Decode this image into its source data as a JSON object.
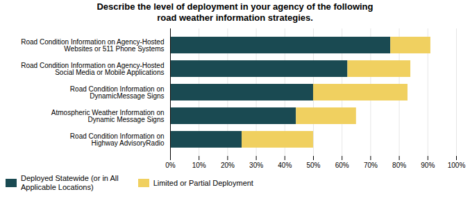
{
  "chart_data": {
    "type": "bar",
    "orientation": "horizontal",
    "stacked": true,
    "title": "Describe the level of deployment in your agency of the following\nroad weather information strategies.",
    "categories": [
      "Road Condition Information on Agency-Hosted\nWebsites or 511 Phone Systems",
      "Road Condition Information on Agency-Hosted\nSocial Media or Mobile Applications",
      "Road Condition Information on\nDynamicMessage Signs",
      "Atmospheric Weather Information on\nDynamic Message Signs",
      "Road Condition Information on\nHighway AdvisoryRadio"
    ],
    "series": [
      {
        "name": "Deployed Statewide (or in All\nApplicable Locations)",
        "color": "#1a4a52",
        "values": [
          77,
          62,
          50,
          44,
          25
        ]
      },
      {
        "name": "Limited or Partial Deployment",
        "color": "#f0d060",
        "values": [
          14,
          22,
          33,
          21,
          25
        ]
      }
    ],
    "xlim": [
      0,
      100
    ],
    "xticks": [
      {
        "value": 0,
        "label": "0%"
      },
      {
        "value": 10,
        "label": "10%"
      },
      {
        "value": 20,
        "label": "20%"
      },
      {
        "value": 30,
        "label": "30%"
      },
      {
        "value": 40,
        "label": "40%"
      },
      {
        "value": 50,
        "label": "50%"
      },
      {
        "value": 60,
        "label": "60%"
      },
      {
        "value": 70,
        "label": "70%"
      },
      {
        "value": 80,
        "label": "80%"
      },
      {
        "value": 90,
        "label": "90%"
      },
      {
        "value": 100,
        "label": "100%"
      }
    ],
    "grid": true,
    "legend": "lower left"
  }
}
